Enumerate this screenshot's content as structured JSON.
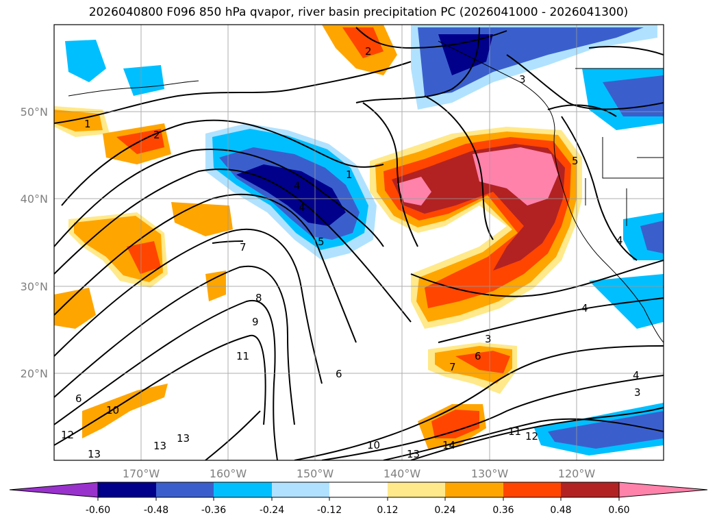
{
  "title": "2026040800 F096 850 hPa qvapor, river basin precipitation PC (2026041000 - 2026041300)",
  "lat_ticks": [
    {
      "label": "20°N",
      "lat": 20
    },
    {
      "label": "30°N",
      "lat": 30
    },
    {
      "label": "40°N",
      "lat": 40
    },
    {
      "label": "50°N",
      "lat": 50
    }
  ],
  "lon_ticks": [
    {
      "label": "170°W",
      "lon": -170
    },
    {
      "label": "160°W",
      "lon": -160
    },
    {
      "label": "150°W",
      "lon": -150
    },
    {
      "label": "140°W",
      "lon": -140
    },
    {
      "label": "130°W",
      "lon": -130
    },
    {
      "label": "120°W",
      "lon": -120
    }
  ],
  "colorbar": {
    "labels": [
      "-0.60",
      "-0.48",
      "-0.36",
      "-0.24",
      "-0.12",
      "0.12",
      "0.24",
      "0.36",
      "0.48",
      "0.60"
    ],
    "colors": [
      "#9932CC",
      "#00008B",
      "#3A5FCD",
      "#00BFFF",
      "#B0E2FF",
      "#FFFFFF",
      "#FFE98A",
      "#FFA500",
      "#FF4500",
      "#B22222",
      "#FF82AB"
    ]
  },
  "contour_labels": [
    "1",
    "2",
    "3",
    "4",
    "5",
    "6",
    "7",
    "8",
    "9",
    "10",
    "11",
    "12",
    "13",
    "14"
  ],
  "map_extent": {
    "lon_min": -180,
    "lon_max": -110,
    "lat_min": 10,
    "lat_max": 60
  }
}
